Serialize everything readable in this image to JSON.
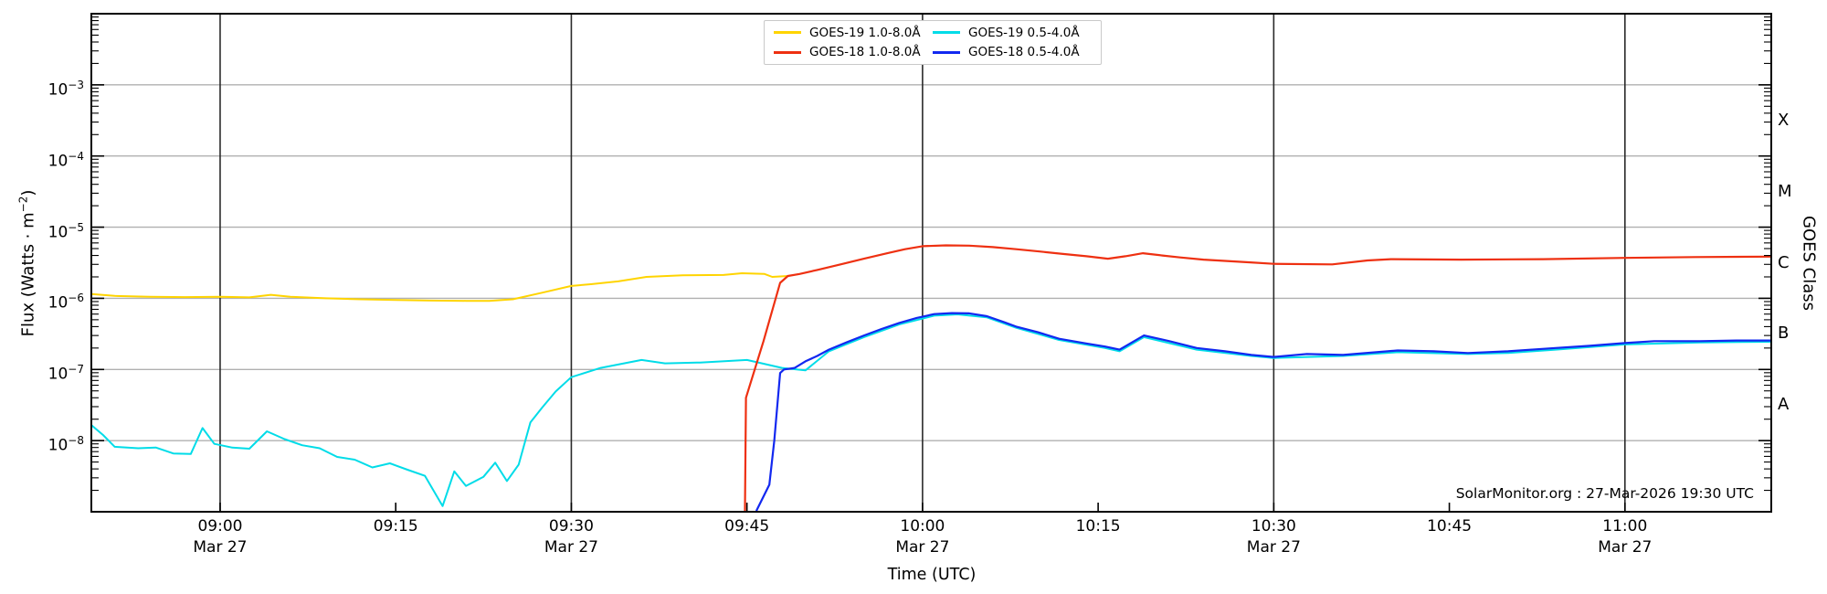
{
  "figure": {
    "attribution": "SolarMonitor.org : 27-Mar-2026 19:30 UTC",
    "background": "#ffffff"
  },
  "chart_data": {
    "type": "line",
    "title": "",
    "xlabel": "Time (UTC)",
    "ylabel": {
      "pre": "Flux (Watts · m",
      "sup": "−2",
      "post": ")"
    },
    "right_axis_label": "GOES Class",
    "y_scale": "log",
    "ylim": [
      1e-09,
      0.01
    ],
    "x_range": {
      "start": "08:49",
      "end": "11:12:30"
    },
    "grid_on": true,
    "colors": {
      "h_gridline": "#b0b0b0",
      "v_gridline": "#2a2a2a",
      "spine": "#000000",
      "tick": "#000000",
      "text": "#000000"
    },
    "x_gridlines": [
      "09:00",
      "09:30",
      "10:00",
      "10:30",
      "11:00"
    ],
    "x_ticks": [
      {
        "time": "09:00",
        "date": "Mar 27"
      },
      {
        "time": "09:15"
      },
      {
        "time": "09:30",
        "date": "Mar 27"
      },
      {
        "time": "09:45"
      },
      {
        "time": "10:00",
        "date": "Mar 27"
      },
      {
        "time": "10:15"
      },
      {
        "time": "10:30",
        "date": "Mar 27"
      },
      {
        "time": "10:45"
      },
      {
        "time": "11:00",
        "date": "Mar 27"
      }
    ],
    "y_ticks": [
      {
        "decade": -3,
        "label_base": "10",
        "label_exp": "−3"
      },
      {
        "decade": -4,
        "label_base": "10",
        "label_exp": "−4"
      },
      {
        "decade": -5,
        "label_base": "10",
        "label_exp": "−5"
      },
      {
        "decade": -6,
        "label_base": "10",
        "label_exp": "−6"
      },
      {
        "decade": -7,
        "label_base": "10",
        "label_exp": "−7"
      },
      {
        "decade": -8,
        "label_base": "10",
        "label_exp": "−8"
      }
    ],
    "goes_classes": [
      {
        "label": "X",
        "mid_decade": -3.5
      },
      {
        "label": "M",
        "mid_decade": -4.5
      },
      {
        "label": "C",
        "mid_decade": -5.5
      },
      {
        "label": "B",
        "mid_decade": -6.5
      },
      {
        "label": "A",
        "mid_decade": -7.5
      }
    ],
    "legend": {
      "position": "top-center",
      "columns": 2,
      "items": [
        {
          "label": "GOES-19 1.0-8.0Å",
          "color": "#ffd400"
        },
        {
          "label": "GOES-18 1.0-8.0Å",
          "color": "#ee3011"
        },
        {
          "label": "GOES-19 0.5-4.0Å",
          "color": "#00dce8"
        },
        {
          "label": "GOES-18 0.5-4.0Å",
          "color": "#1228f0"
        }
      ]
    },
    "series": [
      {
        "name": "GOES-19 0.5-4.0Å",
        "color": "#00dce8",
        "width": 2,
        "points": [
          [
            "08:49:00",
            1.65e-08
          ],
          [
            "08:50:00",
            1.2e-08
          ],
          [
            "08:51:00",
            8.2e-09
          ],
          [
            "08:53:00",
            7.8e-09
          ],
          [
            "08:54:30",
            8e-09
          ],
          [
            "08:56:00",
            6.6e-09
          ],
          [
            "08:57:30",
            6.5e-09
          ],
          [
            "08:58:30",
            1.5e-08
          ],
          [
            "08:59:30",
            9e-09
          ],
          [
            "09:01:00",
            8e-09
          ],
          [
            "09:02:30",
            7.7e-09
          ],
          [
            "09:04:00",
            1.35e-08
          ],
          [
            "09:05:30",
            1.05e-08
          ],
          [
            "09:07:00",
            8.6e-09
          ],
          [
            "09:08:30",
            7.8e-09
          ],
          [
            "09:10:00",
            5.9e-09
          ],
          [
            "09:11:30",
            5.4e-09
          ],
          [
            "09:13:00",
            4.2e-09
          ],
          [
            "09:14:30",
            4.8e-09
          ],
          [
            "09:16:00",
            3.9e-09
          ],
          [
            "09:17:30",
            3.2e-09
          ],
          [
            "09:19:00",
            1.2e-09
          ],
          [
            "09:20:00",
            3.7e-09
          ],
          [
            "09:21:00",
            2.3e-09
          ],
          [
            "09:22:30",
            3.1e-09
          ],
          [
            "09:23:30",
            4.9e-09
          ],
          [
            "09:24:30",
            2.7e-09
          ],
          [
            "09:25:30",
            4.6e-09
          ],
          [
            "09:26:30",
            1.8e-08
          ],
          [
            "09:27:30",
            2.9e-08
          ],
          [
            "09:28:40",
            4.9e-08
          ],
          [
            "09:30:00",
            7.8e-08
          ],
          [
            "09:32:30",
            1.05e-07
          ],
          [
            "09:36:00",
            1.36e-07
          ],
          [
            "09:38:00",
            1.22e-07
          ],
          [
            "09:41:00",
            1.25e-07
          ],
          [
            "09:45:00",
            1.36e-07
          ],
          [
            "09:48:00",
            1.05e-07
          ],
          [
            "09:50:00",
            9.7e-08
          ],
          [
            "09:52:00",
            1.8e-07
          ],
          [
            "09:55:00",
            2.85e-07
          ],
          [
            "09:58:00",
            4.3e-07
          ],
          [
            "10:01:00",
            5.7e-07
          ],
          [
            "10:03:00",
            5.95e-07
          ],
          [
            "10:05:30",
            5.4e-07
          ],
          [
            "10:08:00",
            3.85e-07
          ],
          [
            "10:11:40",
            2.6e-07
          ],
          [
            "10:15:35",
            2e-07
          ],
          [
            "10:16:50",
            1.8e-07
          ],
          [
            "10:18:55",
            2.85e-07
          ],
          [
            "10:23:25",
            1.9e-07
          ],
          [
            "10:28:05",
            1.55e-07
          ],
          [
            "10:30:00",
            1.45e-07
          ],
          [
            "10:35:55",
            1.55e-07
          ],
          [
            "10:40:35",
            1.75e-07
          ],
          [
            "10:46:35",
            1.65e-07
          ],
          [
            "10:50:00",
            1.7e-07
          ],
          [
            "10:54:05",
            1.9e-07
          ],
          [
            "11:00:00",
            2.25e-07
          ],
          [
            "11:06:25",
            2.4e-07
          ],
          [
            "11:12:30",
            2.45e-07
          ]
        ]
      },
      {
        "name": "GOES-19 1.0-8.0Å",
        "color": "#ffd400",
        "width": 2,
        "points": [
          [
            "08:49:00",
            1.15e-06
          ],
          [
            "08:51:00",
            1.08e-06
          ],
          [
            "08:54:00",
            1.05e-06
          ],
          [
            "08:57:00",
            1.04e-06
          ],
          [
            "09:00:00",
            1.05e-06
          ],
          [
            "09:02:30",
            1.03e-06
          ],
          [
            "09:04:20",
            1.12e-06
          ],
          [
            "09:06:00",
            1.05e-06
          ],
          [
            "09:09:00",
            1e-06
          ],
          [
            "09:12:00",
            9.7e-07
          ],
          [
            "09:15:00",
            9.5e-07
          ],
          [
            "09:18:00",
            9.3e-07
          ],
          [
            "09:21:00",
            9.2e-07
          ],
          [
            "09:23:00",
            9.2e-07
          ],
          [
            "09:25:00",
            9.7e-07
          ],
          [
            "09:27:30",
            1.2e-06
          ],
          [
            "09:30:00",
            1.49e-06
          ],
          [
            "09:31:40",
            1.58e-06
          ],
          [
            "09:34:00",
            1.73e-06
          ],
          [
            "09:36:25",
            2e-06
          ],
          [
            "09:39:30",
            2.1e-06
          ],
          [
            "09:43:00",
            2.13e-06
          ],
          [
            "09:44:35",
            2.25e-06
          ],
          [
            "09:46:30",
            2.2e-06
          ],
          [
            "09:47:10",
            2e-06
          ],
          [
            "09:48:30",
            2.06e-06
          ]
        ]
      },
      {
        "name": "GOES-18 0.5-4.0Å",
        "color": "#1228f0",
        "width": 2.2,
        "points": [
          [
            "09:45:50",
            1.05e-09
          ],
          [
            "09:46:55",
            2.4e-09
          ],
          [
            "09:47:20",
            1e-08
          ],
          [
            "09:47:50",
            8.9e-08
          ],
          [
            "09:48:10",
            1e-07
          ],
          [
            "09:49:05",
            1.05e-07
          ],
          [
            "09:50:00",
            1.3e-07
          ],
          [
            "09:51:00",
            1.55e-07
          ],
          [
            "09:52:00",
            1.9e-07
          ],
          [
            "09:53:30",
            2.4e-07
          ],
          [
            "09:55:00",
            3e-07
          ],
          [
            "09:56:30",
            3.7e-07
          ],
          [
            "09:58:00",
            4.5e-07
          ],
          [
            "09:59:30",
            5.3e-07
          ],
          [
            "10:01:00",
            6e-07
          ],
          [
            "10:02:30",
            6.2e-07
          ],
          [
            "10:04:00",
            6.15e-07
          ],
          [
            "10:05:30",
            5.6e-07
          ],
          [
            "10:07:00",
            4.6e-07
          ],
          [
            "10:08:00",
            4e-07
          ],
          [
            "10:09:50",
            3.35e-07
          ],
          [
            "10:11:40",
            2.7e-07
          ],
          [
            "10:14:05",
            2.3e-07
          ],
          [
            "10:15:35",
            2.1e-07
          ],
          [
            "10:16:50",
            1.9e-07
          ],
          [
            "10:18:55",
            3e-07
          ],
          [
            "10:21:05",
            2.5e-07
          ],
          [
            "10:23:25",
            2e-07
          ],
          [
            "10:25:50",
            1.8e-07
          ],
          [
            "10:28:05",
            1.6e-07
          ],
          [
            "10:30:00",
            1.5e-07
          ],
          [
            "10:32:50",
            1.65e-07
          ],
          [
            "10:35:55",
            1.6e-07
          ],
          [
            "10:40:35",
            1.85e-07
          ],
          [
            "10:43:40",
            1.8e-07
          ],
          [
            "10:46:35",
            1.7e-07
          ],
          [
            "10:50:00",
            1.8e-07
          ],
          [
            "10:54:05",
            2e-07
          ],
          [
            "10:57:00",
            2.15e-07
          ],
          [
            "11:00:00",
            2.35e-07
          ],
          [
            "11:02:30",
            2.5e-07
          ],
          [
            "11:06:25",
            2.5e-07
          ],
          [
            "11:09:30",
            2.55e-07
          ],
          [
            "11:12:30",
            2.55e-07
          ]
        ]
      },
      {
        "name": "GOES-18 1.0-8.0Å",
        "color": "#ee3011",
        "width": 2.2,
        "points": [
          [
            "09:44:50",
            1.05e-09
          ],
          [
            "09:44:55",
            4e-08
          ],
          [
            "09:46:25",
            2.5e-07
          ],
          [
            "09:47:50",
            1.65e-06
          ],
          [
            "09:48:30",
            2.06e-06
          ],
          [
            "09:49:30",
            2.2e-06
          ],
          [
            "09:51:00",
            2.5e-06
          ],
          [
            "09:53:00",
            3e-06
          ],
          [
            "09:55:00",
            3.6e-06
          ],
          [
            "09:57:00",
            4.3e-06
          ],
          [
            "09:58:30",
            4.9e-06
          ],
          [
            "10:00:00",
            5.4e-06
          ],
          [
            "10:02:00",
            5.55e-06
          ],
          [
            "10:04:00",
            5.5e-06
          ],
          [
            "10:06:00",
            5.25e-06
          ],
          [
            "10:08:00",
            4.9e-06
          ],
          [
            "10:10:00",
            4.55e-06
          ],
          [
            "10:12:00",
            4.2e-06
          ],
          [
            "10:14:00",
            3.9e-06
          ],
          [
            "10:15:50",
            3.6e-06
          ],
          [
            "10:17:20",
            3.9e-06
          ],
          [
            "10:18:50",
            4.3e-06
          ],
          [
            "10:20:30",
            4e-06
          ],
          [
            "10:22:00",
            3.75e-06
          ],
          [
            "10:24:00",
            3.5e-06
          ],
          [
            "10:26:00",
            3.35e-06
          ],
          [
            "10:28:00",
            3.2e-06
          ],
          [
            "10:30:00",
            3.05e-06
          ],
          [
            "10:35:00",
            3e-06
          ],
          [
            "10:38:00",
            3.4e-06
          ],
          [
            "10:40:00",
            3.55e-06
          ],
          [
            "10:46:00",
            3.5e-06
          ],
          [
            "10:53:00",
            3.55e-06
          ],
          [
            "11:00:00",
            3.7e-06
          ],
          [
            "11:06:00",
            3.8e-06
          ],
          [
            "11:12:30",
            3.85e-06
          ]
        ]
      }
    ]
  }
}
